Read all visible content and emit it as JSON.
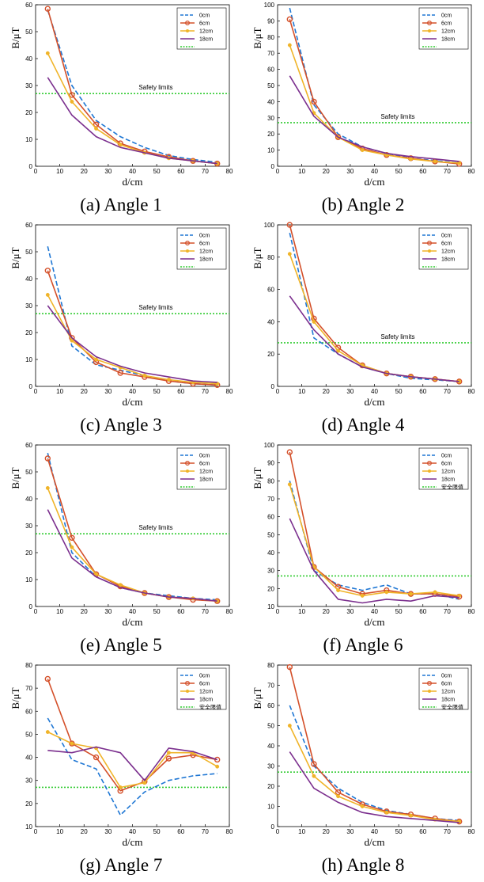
{
  "legend": [
    "0cm",
    "6cm",
    "12cm",
    "18cm"
  ],
  "colors": {
    "0cm": "#1f77d4",
    "6cm": "#d4502a",
    "12cm": "#f0b429",
    "18cm": "#7b2f8e",
    "limit": "#33cc33"
  },
  "chart_data": [
    {
      "type": "line",
      "caption": "(a) Angle 1",
      "xlabel": "d/cm",
      "ylabel": "B/μT",
      "xlim": [
        0,
        80
      ],
      "ylim": [
        0,
        60
      ],
      "xticks": [
        0,
        10,
        20,
        30,
        40,
        50,
        60,
        70,
        80
      ],
      "yticks": [
        0,
        10,
        20,
        30,
        40,
        50,
        60
      ],
      "limit": 27,
      "limit_label": "Safety limits",
      "legend_extra": "",
      "x": [
        5,
        15,
        25,
        35,
        45,
        55,
        65,
        75
      ],
      "series": [
        {
          "name": "0cm",
          "values": [
            58,
            30,
            17,
            11,
            7,
            4,
            2.5,
            1.5
          ]
        },
        {
          "name": "6cm",
          "values": [
            58.5,
            26.5,
            15.5,
            8.5,
            5.5,
            3.5,
            2,
            1
          ]
        },
        {
          "name": "12cm",
          "values": [
            42,
            24,
            14,
            8,
            5,
            3,
            2,
            1
          ]
        },
        {
          "name": "18cm",
          "values": [
            33,
            19,
            11,
            7,
            5,
            3,
            2,
            1
          ]
        }
      ]
    },
    {
      "type": "line",
      "caption": "(b) Angle 2",
      "xlabel": "d/cm",
      "ylabel": "B/μT",
      "xlim": [
        0,
        80
      ],
      "ylim": [
        0,
        100
      ],
      "xticks": [
        0,
        10,
        20,
        30,
        40,
        50,
        60,
        70,
        80
      ],
      "yticks": [
        0,
        10,
        20,
        30,
        40,
        50,
        60,
        70,
        80,
        90,
        100
      ],
      "limit": 27,
      "limit_label": "Safety limits",
      "legend_extra": "",
      "x": [
        5,
        15,
        25,
        35,
        45,
        55,
        65,
        75
      ],
      "series": [
        {
          "name": "0cm",
          "values": [
            98,
            38,
            20,
            12,
            8,
            5,
            3.5,
            2
          ]
        },
        {
          "name": "6cm",
          "values": [
            91,
            40,
            18,
            11,
            7,
            5,
            3,
            1.5
          ]
        },
        {
          "name": "12cm",
          "values": [
            75,
            33,
            18,
            10,
            7,
            4.5,
            3,
            2
          ]
        },
        {
          "name": "18cm",
          "values": [
            56,
            31,
            18,
            12,
            8,
            6,
            4.5,
            3
          ]
        }
      ]
    },
    {
      "type": "line",
      "caption": "(c) Angle 3",
      "xlabel": "d/cm",
      "ylabel": "B/μT",
      "xlim": [
        0,
        80
      ],
      "ylim": [
        0,
        60
      ],
      "xticks": [
        0,
        10,
        20,
        30,
        40,
        50,
        60,
        70,
        80
      ],
      "yticks": [
        0,
        10,
        20,
        30,
        40,
        50,
        60
      ],
      "limit": 27,
      "limit_label": "Safety limits",
      "legend_extra": "",
      "x": [
        5,
        15,
        25,
        35,
        45,
        55,
        65,
        75
      ],
      "series": [
        {
          "name": "0cm",
          "values": [
            52,
            15,
            8,
            6,
            4,
            2,
            1,
            0.5
          ]
        },
        {
          "name": "6cm",
          "values": [
            43,
            18,
            9,
            5,
            3.5,
            2,
            1,
            0.5
          ]
        },
        {
          "name": "12cm",
          "values": [
            34,
            17,
            10,
            7,
            4,
            2.5,
            1.5,
            1
          ]
        },
        {
          "name": "18cm",
          "values": [
            30,
            18,
            11,
            7.5,
            5,
            3.5,
            2,
            1.5
          ]
        }
      ]
    },
    {
      "type": "line",
      "caption": "(d) Angle 4",
      "xlabel": "d/cm",
      "ylabel": "B/μT",
      "xlim": [
        0,
        80
      ],
      "ylim": [
        0,
        100
      ],
      "xticks": [
        0,
        10,
        20,
        30,
        40,
        50,
        60,
        70,
        80
      ],
      "yticks": [
        0,
        20,
        40,
        60,
        80,
        100
      ],
      "limit": 27,
      "limit_label": "Safety limits",
      "legend_extra": "",
      "x": [
        5,
        15,
        25,
        35,
        45,
        55,
        65,
        75
      ],
      "series": [
        {
          "name": "0cm",
          "values": [
            95,
            30,
            20,
            12,
            8,
            5,
            4,
            3
          ]
        },
        {
          "name": "6cm",
          "values": [
            100,
            42,
            24,
            13,
            8,
            6,
            4.5,
            3
          ]
        },
        {
          "name": "12cm",
          "values": [
            82,
            40,
            22,
            13,
            8,
            6,
            4.5,
            3
          ]
        },
        {
          "name": "18cm",
          "values": [
            56,
            35,
            20,
            12,
            8,
            6,
            4.5,
            3
          ]
        }
      ]
    },
    {
      "type": "line",
      "caption": "(e) Angle 5",
      "xlabel": "d/cm",
      "ylabel": "B/μT",
      "xlim": [
        0,
        80
      ],
      "ylim": [
        0,
        60
      ],
      "xticks": [
        0,
        10,
        20,
        30,
        40,
        50,
        60,
        70,
        80
      ],
      "yticks": [
        0,
        10,
        20,
        30,
        40,
        50,
        60
      ],
      "limit": 27,
      "limit_label": "Safety limits",
      "legend_extra": "",
      "x": [
        5,
        15,
        25,
        35,
        45,
        55,
        65,
        75
      ],
      "series": [
        {
          "name": "0cm",
          "values": [
            57,
            20,
            11,
            7,
            5,
            4,
            3,
            2.5
          ]
        },
        {
          "name": "6cm",
          "values": [
            55,
            25.5,
            12,
            7.5,
            5,
            3.5,
            2.5,
            2
          ]
        },
        {
          "name": "12cm",
          "values": [
            44,
            22,
            12,
            8,
            5,
            3.5,
            3,
            2
          ]
        },
        {
          "name": "18cm",
          "values": [
            36,
            18,
            11,
            7,
            5,
            3.5,
            3,
            2
          ]
        }
      ]
    },
    {
      "type": "line",
      "caption": "(f) Angle 6",
      "xlabel": "d/cm",
      "ylabel": "B/μT",
      "xlim": [
        0,
        80
      ],
      "ylim": [
        10,
        100
      ],
      "xticks": [
        0,
        10,
        20,
        30,
        40,
        50,
        60,
        70,
        80
      ],
      "yticks": [
        10,
        20,
        30,
        40,
        50,
        60,
        70,
        80,
        90,
        100
      ],
      "limit": 27,
      "limit_label": "",
      "legend_extra": "安全限值",
      "x": [
        5,
        15,
        25,
        35,
        45,
        55,
        65,
        75
      ],
      "series": [
        {
          "name": "0cm",
          "values": [
            80,
            30,
            22,
            19,
            22,
            17,
            17,
            14
          ]
        },
        {
          "name": "6cm",
          "values": [
            96,
            32,
            21,
            17,
            19,
            17,
            17,
            15.5
          ]
        },
        {
          "name": "12cm",
          "values": [
            78,
            32,
            19,
            16,
            18,
            17,
            18,
            16
          ]
        },
        {
          "name": "18cm",
          "values": [
            59,
            30,
            14,
            12,
            14,
            13,
            16,
            15
          ]
        }
      ]
    },
    {
      "type": "line",
      "caption": "(g) Angle 7",
      "xlabel": "d/cm",
      "ylabel": "B/μT",
      "xlim": [
        0,
        80
      ],
      "ylim": [
        10,
        80
      ],
      "xticks": [
        0,
        10,
        20,
        30,
        40,
        50,
        60,
        70,
        80
      ],
      "yticks": [
        10,
        20,
        30,
        40,
        50,
        60,
        70,
        80
      ],
      "limit": 27,
      "limit_label": "",
      "legend_extra": "安全限值",
      "x": [
        5,
        15,
        25,
        35,
        45,
        55,
        65,
        75
      ],
      "series": [
        {
          "name": "0cm",
          "values": [
            57,
            39,
            35,
            15,
            25,
            30,
            32,
            33
          ]
        },
        {
          "name": "6cm",
          "values": [
            74,
            46,
            40,
            25.5,
            29.5,
            39.5,
            41,
            39
          ]
        },
        {
          "name": "12cm",
          "values": [
            51,
            46,
            44,
            27,
            29,
            42,
            42,
            36
          ]
        },
        {
          "name": "18cm",
          "values": [
            43,
            42,
            44.5,
            42,
            30,
            44,
            42.5,
            39
          ]
        }
      ]
    },
    {
      "type": "line",
      "caption": "(h) Angle 8",
      "xlabel": "d/cm",
      "ylabel": "B/μT",
      "xlim": [
        0,
        80
      ],
      "ylim": [
        0,
        80
      ],
      "xticks": [
        0,
        10,
        20,
        30,
        40,
        50,
        60,
        70,
        80
      ],
      "yticks": [
        0,
        10,
        20,
        30,
        40,
        50,
        60,
        70,
        80
      ],
      "limit": 27,
      "limit_label": "",
      "legend_extra": "安全限值",
      "x": [
        5,
        15,
        25,
        35,
        45,
        55,
        65,
        75
      ],
      "series": [
        {
          "name": "0cm",
          "values": [
            60,
            30,
            19,
            12,
            8,
            6,
            4,
            3
          ]
        },
        {
          "name": "6cm",
          "values": [
            79,
            31,
            17,
            11,
            7.5,
            6,
            4,
            2.5
          ]
        },
        {
          "name": "12cm",
          "values": [
            50,
            25,
            15,
            10,
            7,
            5.5,
            3.5,
            2.5
          ]
        },
        {
          "name": "18cm",
          "values": [
            37,
            19,
            12,
            7,
            5,
            4,
            3,
            2
          ]
        }
      ]
    }
  ]
}
